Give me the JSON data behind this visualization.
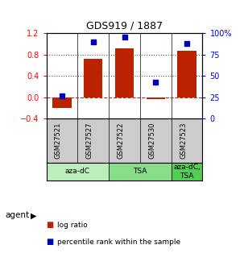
{
  "title": "GDS919 / 1887",
  "samples": [
    "GSM27521",
    "GSM27527",
    "GSM27522",
    "GSM27530",
    "GSM27523"
  ],
  "log_ratios": [
    -0.2,
    0.72,
    0.92,
    -0.04,
    0.87
  ],
  "percentile_ranks": [
    27,
    90,
    96,
    43,
    88
  ],
  "agents": [
    {
      "label": "aza-dC",
      "start": 0,
      "end": 2,
      "color": "#bbeebb"
    },
    {
      "label": "TSA",
      "start": 2,
      "end": 4,
      "color": "#88dd88"
    },
    {
      "label": "aza-dC,\nTSA",
      "start": 4,
      "end": 5,
      "color": "#55cc55"
    }
  ],
  "bar_color": "#bb2200",
  "dot_color": "#0000bb",
  "left_ylim": [
    -0.4,
    1.2
  ],
  "right_ylim": [
    0,
    100
  ],
  "left_yticks": [
    -0.4,
    0.0,
    0.4,
    0.8,
    1.2
  ],
  "right_yticks": [
    0,
    25,
    50,
    75,
    100
  ],
  "right_yticklabels": [
    "0",
    "25",
    "50",
    "75",
    "100%"
  ],
  "hlines": [
    0.0,
    0.4,
    0.8
  ],
  "hline_styles": [
    "--",
    ":",
    ":"
  ],
  "hline_colors": [
    "#cc2222",
    "#555555",
    "#555555"
  ],
  "background_color": "#ffffff",
  "sample_bg_color": "#cccccc",
  "agent_label": "agent",
  "legend_log_ratio": "log ratio",
  "legend_percentile": "percentile rank within the sample"
}
